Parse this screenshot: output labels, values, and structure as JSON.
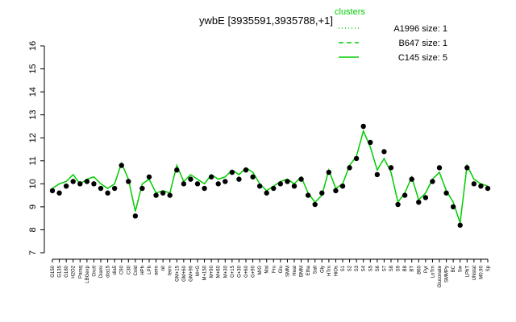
{
  "chart_data": {
    "type": "line",
    "title": "ywbE [3935591,3935788,+1]",
    "categories": [
      "G150",
      "G135",
      "G180",
      "H2O2",
      "Paraq",
      "LBGexp",
      "Oxctl",
      "Diami",
      "dia15",
      "dia5",
      "C90",
      "C30",
      "Cold",
      "HPh",
      "LPh",
      "aero",
      "nit",
      "ferm",
      "GM+15",
      "GM+60",
      "GM+90",
      "M+G",
      "M+150",
      "M+90",
      "M+60",
      "M+30",
      "G+15",
      "G+30",
      "G+60",
      "G+90",
      "M/G",
      "Mal",
      "Fru",
      "Glu",
      "SMM",
      "Heat",
      "BMM",
      "Etha",
      "Salt",
      "Gly",
      "HTm",
      "HiOs",
      "S1",
      "S2",
      "S3",
      "S4",
      "S5",
      "S6",
      "S7",
      "S8",
      "S9",
      "B8",
      "BT",
      "B60",
      "Pyr",
      "LoTm",
      "Gluconate",
      "SMMPy",
      "BC",
      "Sw",
      "LPhT",
      "UNstat",
      "M0.90",
      "Sp"
    ],
    "color": "#00cc00",
    "values": [
      9.8,
      10.0,
      10.1,
      10.4,
      10.0,
      10.2,
      10.3,
      10.0,
      9.8,
      10.0,
      10.9,
      10.2,
      8.8,
      10.0,
      10.2,
      9.6,
      9.7,
      9.6,
      10.8,
      10.1,
      10.4,
      10.2,
      10.0,
      10.4,
      10.2,
      10.3,
      10.6,
      10.4,
      10.7,
      10.5,
      10.0,
      9.7,
      9.9,
      10.1,
      10.2,
      10.0,
      10.3,
      9.6,
      9.2,
      9.5,
      10.6,
      9.8,
      10.0,
      10.8,
      11.2,
      12.3,
      11.6,
      10.6,
      11.1,
      10.5,
      9.2,
      9.6,
      10.3,
      9.3,
      9.6,
      10.2,
      10.5,
      9.7,
      9.2,
      8.3,
      10.8,
      10.2,
      10.0,
      9.9
    ],
    "points": [
      9.7,
      9.6,
      9.9,
      10.1,
      10.0,
      10.1,
      10.0,
      9.8,
      9.6,
      9.8,
      10.8,
      10.1,
      8.6,
      9.8,
      10.3,
      9.5,
      9.6,
      9.5,
      10.6,
      10.0,
      10.2,
      10.0,
      9.8,
      10.3,
      10.0,
      10.1,
      10.5,
      10.2,
      10.6,
      10.3,
      9.9,
      9.6,
      9.8,
      10.0,
      10.1,
      9.9,
      10.2,
      9.5,
      9.1,
      9.6,
      10.5,
      9.7,
      9.9,
      10.7,
      11.1,
      12.5,
      11.8,
      10.4,
      11.4,
      10.7,
      9.1,
      9.5,
      10.2,
      9.2,
      9.4,
      10.1,
      10.7,
      9.6,
      9.0,
      8.2,
      10.7,
      10.0,
      9.9,
      9.8
    ],
    "point_color": "#000000",
    "ylim": [
      7,
      16
    ],
    "yticks": [
      7,
      8,
      9,
      10,
      11,
      12,
      13,
      14,
      15,
      16
    ],
    "legend": {
      "title": "clusters",
      "position": "top-right",
      "color": "#00cc00",
      "entries": [
        {
          "label": "A1996 size: 1",
          "dash": "1,3"
        },
        {
          "label": "B647 size: 1",
          "dash": "6,4"
        },
        {
          "label": "C145 size: 5",
          "dash": "none"
        }
      ]
    }
  }
}
